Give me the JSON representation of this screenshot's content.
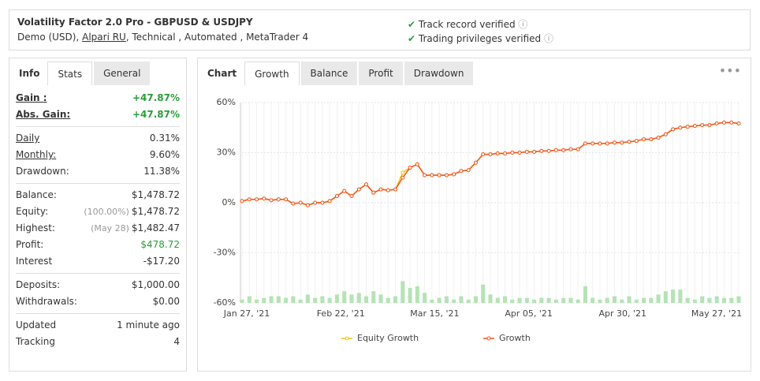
{
  "header": {
    "title": "Volatility Factor 2.0 Pro - GBPUSD & USDJPY",
    "account": "Demo (USD),",
    "broker": "Alpari RU",
    "details": ", Technical , Automated , MetaTrader 4",
    "verifications": [
      "Track record verified",
      "Trading privileges verified"
    ]
  },
  "stats_panel": {
    "tabs": [
      "Info",
      "Stats",
      "General"
    ],
    "groups": [
      [
        {
          "label": "Gain :",
          "value": "+47.87%"
        },
        {
          "label": "Abs. Gain:",
          "value": "+47.87%"
        }
      ],
      [
        {
          "label": "Daily",
          "value": "0.31%"
        },
        {
          "label": "Monthly:",
          "value": "9.60%"
        },
        {
          "label": "Drawdown:",
          "value": "11.38%"
        }
      ],
      [
        {
          "label": "Balance:",
          "value": "$1,478.72"
        },
        {
          "label": "Equity:",
          "note": "(100.00%)",
          "value": "$1,478.72"
        },
        {
          "label": "Highest:",
          "note": "(May 28)",
          "value": "$1,482.47"
        },
        {
          "label": "Profit:",
          "value": "$478.72"
        },
        {
          "label": "Interest",
          "value": "-$17.20"
        }
      ],
      [
        {
          "label": "Deposits:",
          "value": "$1,000.00"
        },
        {
          "label": "Withdrawals:",
          "value": "$0.00"
        }
      ],
      [
        {
          "label": "Updated",
          "value": "1 minute ago"
        },
        {
          "label": "Tracking",
          "value": "4"
        }
      ]
    ]
  },
  "chart_panel": {
    "tabs": [
      "Chart",
      "Growth",
      "Balance",
      "Profit",
      "Drawdown"
    ],
    "chart_data": {
      "type": "line",
      "ylim": [
        -60,
        60
      ],
      "yticks": [
        {
          "value": 60,
          "label": "60%"
        },
        {
          "value": 30,
          "label": "30%"
        },
        {
          "value": 0,
          "label": "0%"
        },
        {
          "value": -30,
          "label": "-30%"
        },
        {
          "value": -60,
          "label": "-60%"
        }
      ],
      "x_labels": [
        "Jan 27, '21",
        "Feb 22, '21",
        "Mar 15, '21",
        "Apr 05, '21",
        "Apr 30, '21",
        "May 27, '21"
      ],
      "series": [
        {
          "name": "Equity Growth",
          "color": "#f5c400",
          "values": [
            1,
            2,
            2,
            2.5,
            1.5,
            2,
            2,
            -0.5,
            0,
            -1.5,
            0,
            0,
            1,
            4,
            7,
            4,
            8,
            11,
            6,
            8,
            7.5,
            8,
            18,
            21,
            23,
            16.5,
            16.5,
            16.5,
            16.5,
            17,
            19,
            19.5,
            24,
            29,
            29,
            29.5,
            29.5,
            30,
            30,
            30.5,
            30.5,
            31,
            31,
            31.5,
            31.5,
            32,
            32,
            35.5,
            35.5,
            35.5,
            35.5,
            36,
            36,
            36.5,
            37,
            38,
            38,
            39,
            41,
            44,
            45,
            45.5,
            46,
            46.5,
            46.5,
            47.5,
            48,
            48,
            47.5
          ]
        },
        {
          "name": "Growth",
          "color": "#f0521f",
          "values": [
            1,
            2,
            2,
            2.5,
            1.5,
            2,
            2,
            -0.5,
            0,
            -1.5,
            0,
            0,
            1,
            4,
            7,
            4,
            8,
            11,
            6,
            8,
            7.5,
            8,
            15,
            21,
            23,
            16.5,
            16.5,
            16.5,
            16.5,
            17,
            19,
            19.5,
            24,
            29,
            29,
            29.5,
            29.5,
            30,
            30,
            30.5,
            30.5,
            31,
            31,
            31.5,
            31.5,
            32,
            32,
            35.5,
            35.5,
            35.5,
            35.5,
            36,
            36,
            36.5,
            37,
            38,
            38,
            39,
            41,
            44,
            45,
            45.5,
            46,
            46.5,
            46.5,
            47.5,
            48,
            48,
            47.5
          ]
        }
      ],
      "bars": {
        "color": "#b5e3b5",
        "values": [
          -58,
          -56,
          -58,
          -57,
          -56,
          -56,
          -57,
          -56,
          -58,
          -55,
          -57,
          -56,
          -57,
          -55,
          -53,
          -55,
          -54,
          -56,
          -53,
          -55,
          -57,
          -56,
          -47,
          -51,
          -50,
          -54,
          -58,
          -57,
          -56,
          -58,
          -56,
          -58,
          -56,
          -49,
          -55,
          -57,
          -56,
          -58,
          -57,
          -57,
          -58,
          -57,
          -57,
          -58,
          -57,
          -57,
          -58,
          -50,
          -57,
          -58,
          -57,
          -56,
          -58,
          -56,
          -58,
          -57,
          -57,
          -55,
          -53,
          -52,
          -52,
          -57,
          -58,
          -56,
          -57,
          -56,
          -57,
          -57,
          -56
        ]
      },
      "grid": true
    }
  }
}
